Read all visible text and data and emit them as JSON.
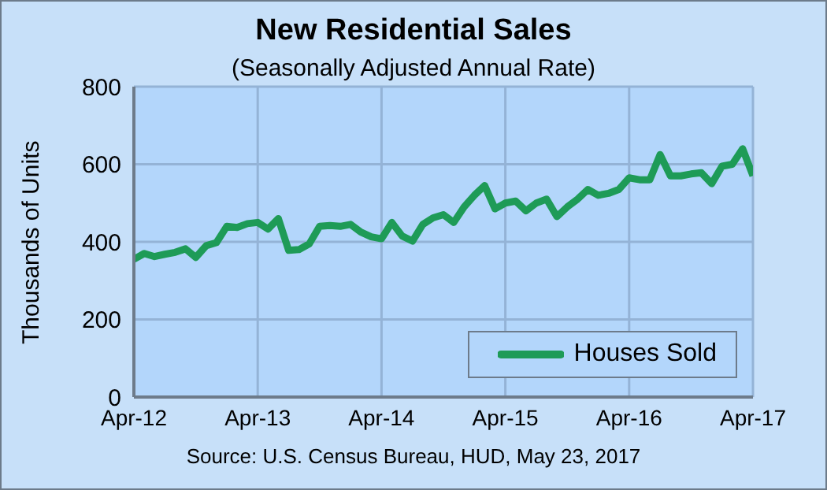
{
  "chart_data": {
    "type": "line",
    "title": "New Residential Sales",
    "subtitle": "(Seasonally Adjusted Annual Rate)",
    "ylabel": "Thousands of Units",
    "annotations": [
      "Source:  U.S. Census Bureau, HUD, May 23, 2017"
    ],
    "x": [
      "2012-04",
      "2012-05",
      "2012-06",
      "2012-07",
      "2012-08",
      "2012-09",
      "2012-10",
      "2012-11",
      "2012-12",
      "2013-01",
      "2013-02",
      "2013-03",
      "2013-04",
      "2013-05",
      "2013-06",
      "2013-07",
      "2013-08",
      "2013-09",
      "2013-10",
      "2013-11",
      "2013-12",
      "2014-01",
      "2014-02",
      "2014-03",
      "2014-04",
      "2014-05",
      "2014-06",
      "2014-07",
      "2014-08",
      "2014-09",
      "2014-10",
      "2014-11",
      "2014-12",
      "2015-01",
      "2015-02",
      "2015-03",
      "2015-04",
      "2015-05",
      "2015-06",
      "2015-07",
      "2015-08",
      "2015-09",
      "2015-10",
      "2015-11",
      "2015-12",
      "2016-01",
      "2016-02",
      "2016-03",
      "2016-04",
      "2016-05",
      "2016-06",
      "2016-07",
      "2016-08",
      "2016-09",
      "2016-10",
      "2016-11",
      "2016-12",
      "2017-01",
      "2017-02",
      "2017-03",
      "2017-04"
    ],
    "series": [
      {
        "name": "Houses Sold",
        "color": "#1e9b57",
        "values": [
          355,
          370,
          362,
          368,
          373,
          382,
          360,
          390,
          398,
          440,
          437,
          447,
          450,
          433,
          460,
          378,
          380,
          395,
          440,
          442,
          440,
          445,
          425,
          413,
          408,
          450,
          415,
          402,
          445,
          462,
          470,
          450,
          490,
          520,
          545,
          485,
          500,
          505,
          480,
          500,
          510,
          465,
          490,
          510,
          535,
          520,
          525,
          535,
          565,
          560,
          560,
          625,
          570,
          570,
          575,
          578,
          550,
          595,
          600,
          640,
          570
        ]
      }
    ],
    "xlim": [
      "2012-04",
      "2017-04"
    ],
    "xticks": [
      {
        "value": "2012-04",
        "label": "Apr-12"
      },
      {
        "value": "2013-04",
        "label": "Apr-13"
      },
      {
        "value": "2014-04",
        "label": "Apr-14"
      },
      {
        "value": "2015-04",
        "label": "Apr-15"
      },
      {
        "value": "2016-04",
        "label": "Apr-16"
      },
      {
        "value": "2017-04",
        "label": "Apr-17"
      }
    ],
    "ylim": [
      0,
      800
    ],
    "yticks": [
      0,
      200,
      400,
      600,
      800
    ],
    "grid": true,
    "legend": "bottom right",
    "marker": "none",
    "line_style": "solid"
  }
}
